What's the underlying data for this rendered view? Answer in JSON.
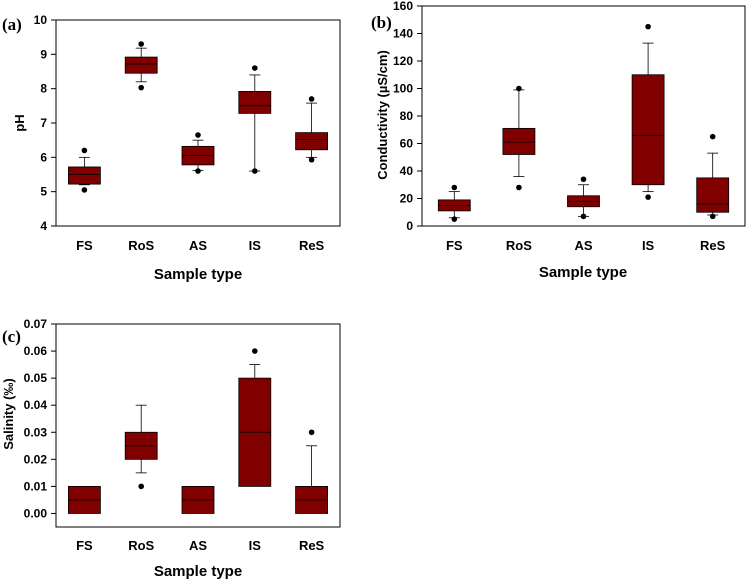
{
  "chart_data": [
    {
      "type": "box",
      "panel_label": "(a)",
      "title": "",
      "xlabel": "Sample type",
      "ylabel": "pH",
      "categories": [
        "FS",
        "RoS",
        "AS",
        "IS",
        "ReS"
      ],
      "ylim": [
        4,
        10
      ],
      "yticks": [
        4,
        5,
        6,
        7,
        8,
        9,
        10
      ],
      "ytick_labels": [
        "4",
        "5",
        "6",
        "7",
        "8",
        "9",
        "10"
      ],
      "box_color": "#800000",
      "boxes": [
        {
          "category": "FS",
          "whisker_low": 5.2,
          "q1": 5.22,
          "median": 5.5,
          "q3": 5.72,
          "whisker_high": 6.0,
          "outliers": [
            5.05,
            6.2
          ]
        },
        {
          "category": "RoS",
          "whisker_low": 8.2,
          "q1": 8.45,
          "median": 8.72,
          "q3": 8.92,
          "whisker_high": 9.18,
          "outliers": [
            8.03,
            9.3
          ]
        },
        {
          "category": "AS",
          "whisker_low": 5.62,
          "q1": 5.78,
          "median": 6.05,
          "q3": 6.32,
          "whisker_high": 6.5,
          "outliers": [
            5.6,
            6.65
          ]
        },
        {
          "category": "IS",
          "whisker_low": 5.6,
          "q1": 7.28,
          "median": 7.5,
          "q3": 7.92,
          "whisker_high": 8.4,
          "outliers": [
            5.6,
            8.6
          ]
        },
        {
          "category": "ReS",
          "whisker_low": 6.0,
          "q1": 6.22,
          "median": 6.52,
          "q3": 6.72,
          "whisker_high": 7.58,
          "outliers": [
            5.93,
            7.7
          ]
        }
      ]
    },
    {
      "type": "box",
      "panel_label": "(b)",
      "title": "",
      "xlabel": "Sample type",
      "ylabel": "Conductivity (µS/cm)",
      "categories": [
        "FS",
        "RoS",
        "AS",
        "IS",
        "ReS"
      ],
      "ylim": [
        0,
        160
      ],
      "yticks": [
        0,
        20,
        40,
        60,
        80,
        100,
        120,
        140,
        160
      ],
      "ytick_labels": [
        "0",
        "20",
        "40",
        "60",
        "80",
        "100",
        "120",
        "140",
        "160"
      ],
      "box_color": "#800000",
      "boxes": [
        {
          "category": "FS",
          "whisker_low": 6,
          "q1": 11,
          "median": 15,
          "q3": 19,
          "whisker_high": 25,
          "outliers": [
            5,
            28
          ]
        },
        {
          "category": "RoS",
          "whisker_low": 36,
          "q1": 52,
          "median": 61,
          "q3": 71,
          "whisker_high": 99,
          "outliers": [
            28,
            100
          ]
        },
        {
          "category": "AS",
          "whisker_low": 7,
          "q1": 14,
          "median": 18,
          "q3": 22,
          "whisker_high": 30,
          "outliers": [
            7,
            34
          ]
        },
        {
          "category": "IS",
          "whisker_low": 25,
          "q1": 30,
          "median": 66,
          "q3": 110,
          "whisker_high": 133,
          "outliers": [
            21,
            145
          ]
        },
        {
          "category": "ReS",
          "whisker_low": 8,
          "q1": 10,
          "median": 16,
          "q3": 35,
          "whisker_high": 53,
          "outliers": [
            7,
            65
          ]
        }
      ]
    },
    {
      "type": "box",
      "panel_label": "(c)",
      "title": "",
      "xlabel": "Sample type",
      "ylabel": "Salinity (‰)",
      "categories": [
        "FS",
        "RoS",
        "AS",
        "IS",
        "ReS"
      ],
      "ylim": [
        -0.005,
        0.07
      ],
      "yticks": [
        0,
        0.01,
        0.02,
        0.03,
        0.04,
        0.05,
        0.06,
        0.07
      ],
      "ytick_labels": [
        "0.00",
        "0.01",
        "0.02",
        "0.03",
        "0.04",
        "0.05",
        "0.06",
        "0.07"
      ],
      "box_color": "#800000",
      "boxes": [
        {
          "category": "FS",
          "whisker_low": 0,
          "q1": 0,
          "median": 0.005,
          "q3": 0.01,
          "whisker_high": 0.01,
          "outliers": []
        },
        {
          "category": "RoS",
          "whisker_low": 0.015,
          "q1": 0.02,
          "median": 0.025,
          "q3": 0.03,
          "whisker_high": 0.04,
          "outliers": [
            0.01
          ]
        },
        {
          "category": "AS",
          "whisker_low": 0,
          "q1": 0,
          "median": 0.005,
          "q3": 0.01,
          "whisker_high": 0.01,
          "outliers": []
        },
        {
          "category": "IS",
          "whisker_low": 0.01,
          "q1": 0.01,
          "median": 0.03,
          "q3": 0.05,
          "whisker_high": 0.055,
          "outliers": [
            0.06
          ]
        },
        {
          "category": "ReS",
          "whisker_low": 0,
          "q1": 0,
          "median": 0.005,
          "q3": 0.01,
          "whisker_high": 0.025,
          "outliers": [
            0.03
          ]
        }
      ]
    }
  ]
}
